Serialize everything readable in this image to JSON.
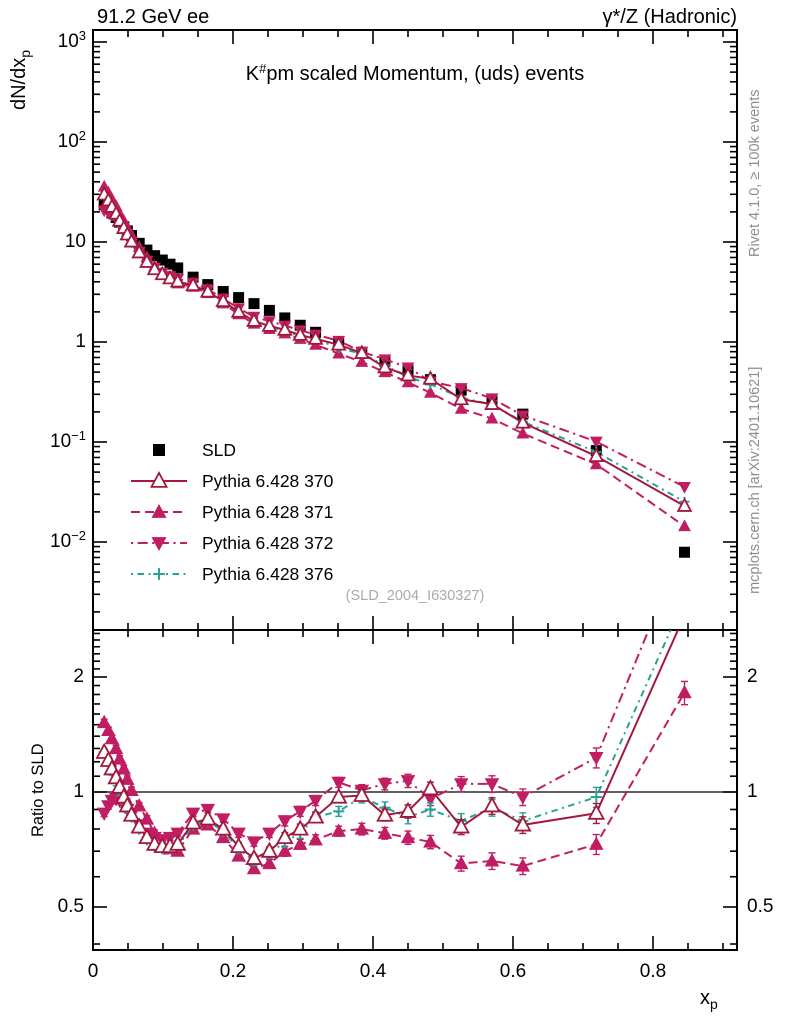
{
  "header": {
    "left": "91.2 GeV ee",
    "right": "γ*/Z (Hadronic)"
  },
  "title": {
    "prefix": "K",
    "sup": "#",
    "suffix": "pm scaled Momentum, (uds) events"
  },
  "watermark": "(SLD_2004_I630327)",
  "side_notes": {
    "top": "Rivet 4.1.0, ≥ 100k events",
    "bottom": "mcplots.cern.ch [arXiv:2401.10621]"
  },
  "axes": {
    "y_main": {
      "text": "dN/dx",
      "sub": "p"
    },
    "y_ratio": {
      "text": "Ratio to SLD"
    },
    "x": {
      "text": "x",
      "sub": "p"
    },
    "x_tick_labels": [
      "0",
      "0.2",
      "0.4",
      "0.6",
      "0.8"
    ],
    "x_tick_values": [
      0,
      0.2,
      0.4,
      0.6,
      0.8
    ],
    "main_y_tick_labels": [
      {
        "base": "10",
        "exp": "3",
        "value": 1000
      },
      {
        "base": "10",
        "exp": "2",
        "value": 100
      },
      {
        "base": "10",
        "exp": "",
        "value": 10
      },
      {
        "base": "1",
        "exp": "",
        "value": 1
      },
      {
        "base": "10",
        "exp": "−1",
        "value": 0.1
      },
      {
        "base": "10",
        "exp": "−2",
        "value": 0.01
      }
    ],
    "ratio_y_tick_labels": [
      {
        "base": "2",
        "exp": "",
        "value": 2
      },
      {
        "base": "1",
        "exp": "",
        "value": 1
      },
      {
        "base": "0.5",
        "exp": "",
        "value": 0.5
      }
    ]
  },
  "chart_data": {
    "type": "line",
    "title": "K#pm scaled Momentum, (uds) events",
    "xlabel": "x_p",
    "ylabel": "dN/dx_p",
    "ylabel_ratio": "Ratio to SLD",
    "x_range": [
      0,
      0.92
    ],
    "y_range_main_log": [
      0.00132,
      1318
    ],
    "y_range_ratio_log": [
      0.386,
      2.65
    ],
    "legend_position": "middle-left",
    "grid": false,
    "x": [
      0.016,
      0.022,
      0.027,
      0.033,
      0.038,
      0.044,
      0.049,
      0.055,
      0.066,
      0.077,
      0.088,
      0.099,
      0.11,
      0.121,
      0.143,
      0.164,
      0.186,
      0.208,
      0.23,
      0.252,
      0.274,
      0.296,
      0.318,
      0.351,
      0.384,
      0.417,
      0.45,
      0.482,
      0.526,
      0.57,
      0.614,
      0.719,
      0.845
    ],
    "reference": {
      "name": "SLD",
      "color": "#000000",
      "marker": "square",
      "values": [
        23.5,
        21.5,
        19.5,
        17.6,
        15.8,
        14.2,
        12.9,
        11.6,
        9.7,
        8.3,
        7.3,
        6.6,
        6.0,
        5.5,
        4.45,
        3.75,
        3.2,
        2.78,
        2.42,
        2.07,
        1.74,
        1.47,
        1.25,
        0.97,
        0.79,
        0.64,
        0.52,
        0.42,
        0.33,
        0.26,
        0.19,
        0.082,
        0.0079
      ],
      "rel_err": [
        0.02,
        0.02,
        0.02,
        0.02,
        0.02,
        0.02,
        0.02,
        0.02,
        0.02,
        0.02,
        0.02,
        0.02,
        0.02,
        0.02,
        0.02,
        0.02,
        0.02,
        0.025,
        0.025,
        0.025,
        0.03,
        0.03,
        0.03,
        0.03,
        0.035,
        0.035,
        0.04,
        0.04,
        0.045,
        0.05,
        0.05,
        0.06,
        0.07
      ]
    },
    "series": [
      {
        "name": "Pythia 6.428 371",
        "color": "#c01d63",
        "marker": "triangle-up-filled",
        "dash": "dash",
        "ratio_to_sld": [
          1.52,
          1.45,
          1.38,
          1.3,
          1.22,
          1.15,
          1.08,
          1.01,
          0.92,
          0.85,
          0.78,
          0.73,
          0.71,
          0.7,
          0.8,
          0.82,
          0.76,
          0.68,
          0.63,
          0.65,
          0.7,
          0.73,
          0.75,
          0.79,
          0.8,
          0.78,
          0.76,
          0.74,
          0.65,
          0.66,
          0.64,
          0.73,
          1.82
        ]
      },
      {
        "name": "Pythia 6.428 372",
        "color": "#c01d63",
        "marker": "triangle-down-filled",
        "dash": "dashdot",
        "ratio_to_sld": [
          0.88,
          0.92,
          0.95,
          0.96,
          0.95,
          0.93,
          0.9,
          0.87,
          0.82,
          0.78,
          0.76,
          0.75,
          0.76,
          0.78,
          0.88,
          0.9,
          0.85,
          0.78,
          0.74,
          0.78,
          0.84,
          0.89,
          0.95,
          1.06,
          1.01,
          1.05,
          1.07,
          0.96,
          1.05,
          1.05,
          0.97,
          1.23,
          4.5
        ]
      },
      {
        "name": "Pythia 6.428 376",
        "color": "#29a197",
        "marker": "plus",
        "dash": "dashdotdot",
        "ratio_to_sld": [
          1.27,
          1.2,
          1.13,
          1.06,
          1.0,
          0.95,
          0.9,
          0.86,
          0.8,
          0.75,
          0.72,
          0.71,
          0.71,
          0.72,
          0.82,
          0.84,
          0.79,
          0.71,
          0.66,
          0.69,
          0.74,
          0.78,
          0.86,
          0.89,
          0.97,
          0.91,
          0.86,
          0.9,
          0.84,
          0.91,
          0.84,
          0.97,
          3.2
        ]
      },
      {
        "name": "Pythia 6.428 370",
        "color": "#a2193d",
        "marker": "triangle-up-open",
        "dash": "solid",
        "ratio_to_sld": [
          1.27,
          1.21,
          1.15,
          1.09,
          1.03,
          0.97,
          0.92,
          0.87,
          0.81,
          0.76,
          0.73,
          0.72,
          0.72,
          0.73,
          0.83,
          0.85,
          0.8,
          0.72,
          0.67,
          0.7,
          0.76,
          0.8,
          0.86,
          0.97,
          0.98,
          0.87,
          0.89,
          1.02,
          0.81,
          0.92,
          0.82,
          0.88,
          2.9
        ]
      }
    ],
    "legend_order": [
      "SLD",
      "Pythia 6.428 370",
      "Pythia 6.428 371",
      "Pythia 6.428 372",
      "Pythia 6.428 376"
    ]
  }
}
